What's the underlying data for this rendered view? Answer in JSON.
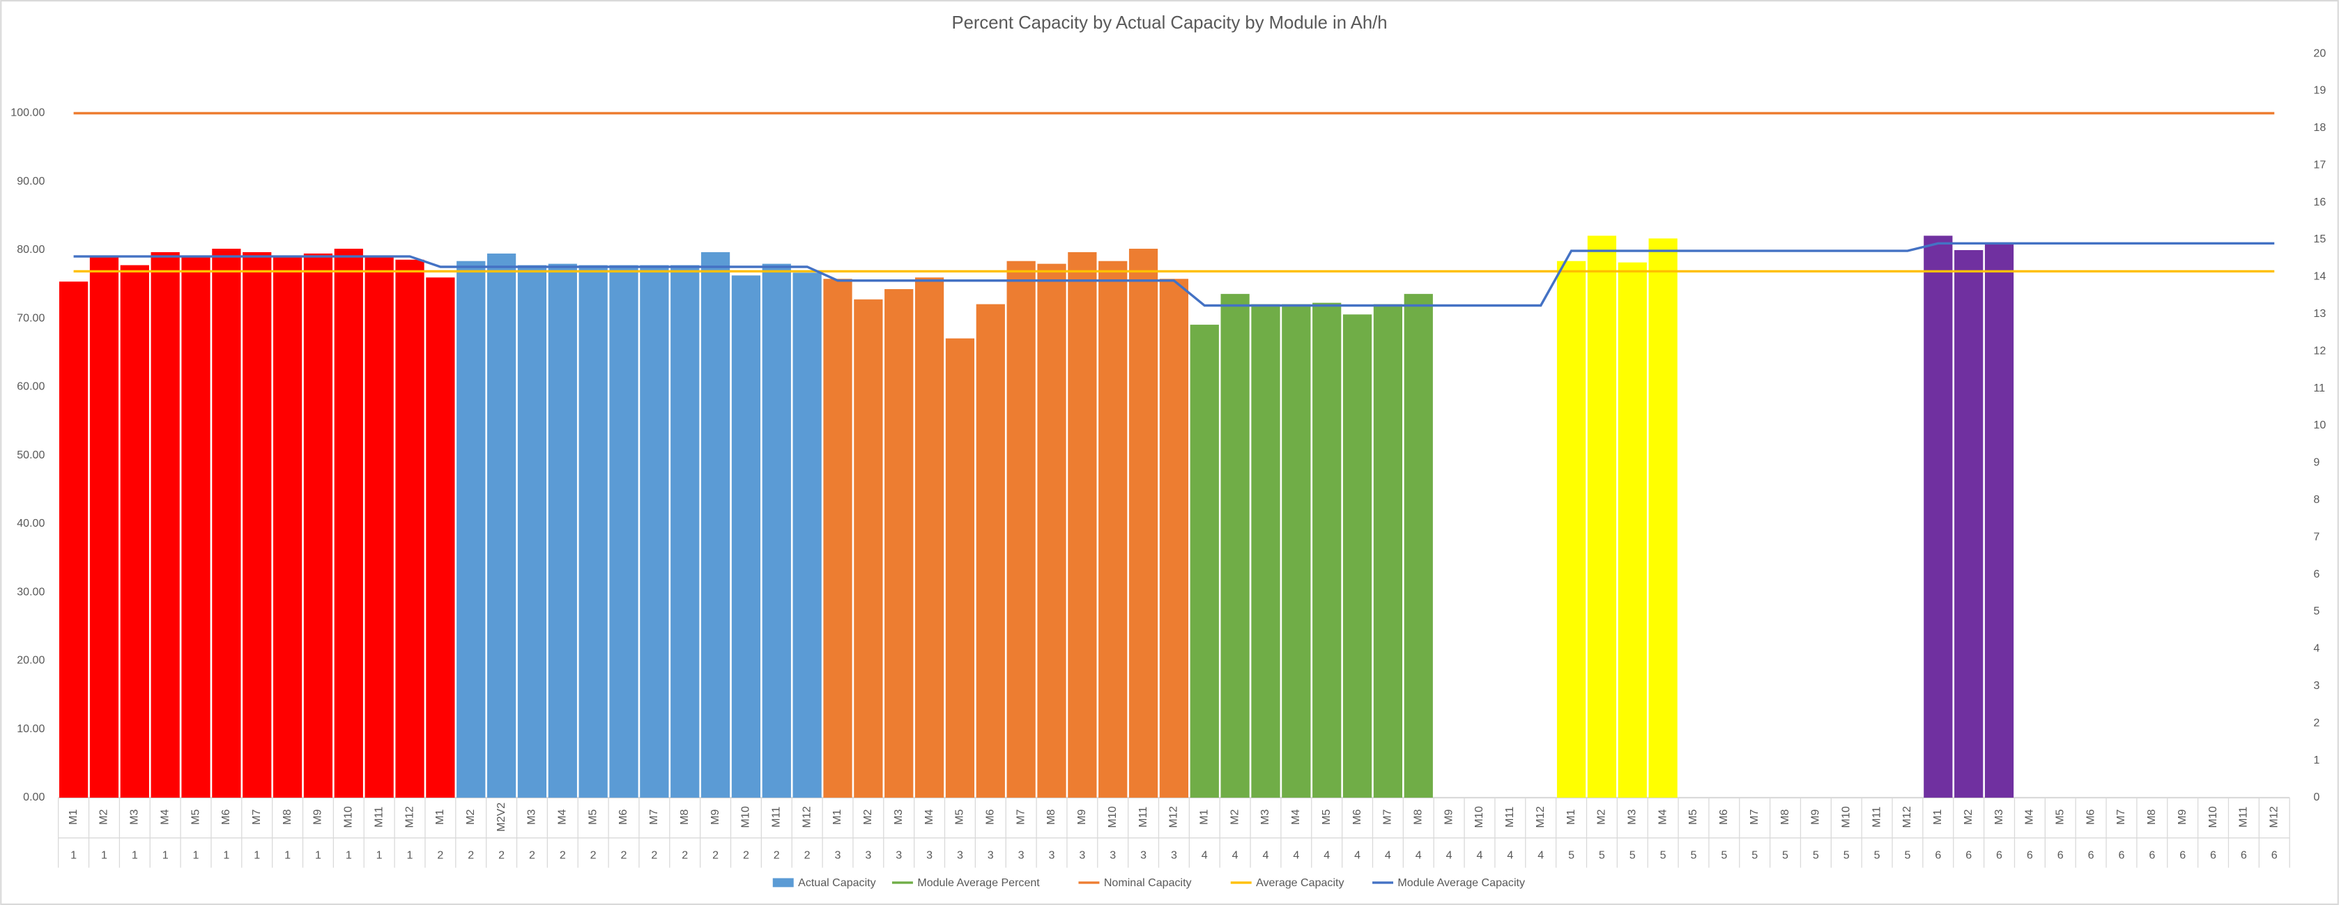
{
  "chart_data": {
    "type": "bar",
    "title": "Percent Capacity by Actual Capacity by Module in Ah/h",
    "categories": [
      "M1",
      "M2",
      "M3",
      "M4",
      "M5",
      "M6",
      "M7",
      "M8",
      "M9",
      "M10",
      "M11",
      "M12",
      "M1",
      "M2",
      "M2V2",
      "M3",
      "M4",
      "M5",
      "M6",
      "M7",
      "M8",
      "M9",
      "M10",
      "M11",
      "M12",
      "M1",
      "M2",
      "M3",
      "M4",
      "M5",
      "M6",
      "M7",
      "M8",
      "M9",
      "M10",
      "M11",
      "M12",
      "M1",
      "M2",
      "M3",
      "M4",
      "M5",
      "M6",
      "M7",
      "M8",
      "M9",
      "M10",
      "M11",
      "M12",
      "M1",
      "M2",
      "M3",
      "M4",
      "M5",
      "M6",
      "M7",
      "M8",
      "M9",
      "M10",
      "M11",
      "M12",
      "M1",
      "M2",
      "M3",
      "M4",
      "M5",
      "M6",
      "M7",
      "M8",
      "M9",
      "M10",
      "M11",
      "M12"
    ],
    "category_groups": [
      "1",
      "1",
      "1",
      "1",
      "1",
      "1",
      "1",
      "1",
      "1",
      "1",
      "1",
      "1",
      "2",
      "2",
      "2",
      "2",
      "2",
      "2",
      "2",
      "2",
      "2",
      "2",
      "2",
      "2",
      "2",
      "3",
      "3",
      "3",
      "3",
      "3",
      "3",
      "3",
      "3",
      "3",
      "3",
      "3",
      "3",
      "4",
      "4",
      "4",
      "4",
      "4",
      "4",
      "4",
      "4",
      "4",
      "4",
      "4",
      "4",
      "5",
      "5",
      "5",
      "5",
      "5",
      "5",
      "5",
      "5",
      "5",
      "5",
      "5",
      "5",
      "6",
      "6",
      "6",
      "6",
      "6",
      "6",
      "6",
      "6",
      "6",
      "6",
      "6",
      "6"
    ],
    "ylim": [
      0,
      108.7
    ],
    "yticks": [
      {
        "value": 0,
        "label": "0.00"
      },
      {
        "value": 10,
        "label": "10.00"
      },
      {
        "value": 20,
        "label": "20.00"
      },
      {
        "value": 30,
        "label": "30.00"
      },
      {
        "value": 40,
        "label": "40.00"
      },
      {
        "value": 50,
        "label": "50.00"
      },
      {
        "value": 60,
        "label": "60.00"
      },
      {
        "value": 70,
        "label": "70.00"
      },
      {
        "value": 80,
        "label": "80.00"
      },
      {
        "value": 90,
        "label": "90.00"
      },
      {
        "value": 100,
        "label": "100.00"
      }
    ],
    "y2lim": [
      0,
      20
    ],
    "y2ticks": [
      0,
      1,
      2,
      3,
      4,
      5,
      6,
      7,
      8,
      9,
      10,
      11,
      12,
      13,
      14,
      15,
      16,
      17,
      18,
      19,
      20
    ],
    "series": [
      {
        "name": "Actual Capacity",
        "type": "bar",
        "color": "#5b9bd5",
        "values": [
          75.4,
          79.1,
          77.8,
          79.7,
          79.1,
          80.2,
          79.7,
          79.1,
          79.5,
          80.2,
          79.1,
          78.6,
          76.0,
          78.4,
          79.5,
          77.8,
          78.0,
          77.8,
          77.8,
          77.8,
          77.8,
          79.7,
          76.3,
          78.0,
          76.7,
          75.8,
          72.8,
          74.3,
          76.0,
          67.1,
          72.1,
          78.4,
          78.0,
          79.7,
          78.4,
          80.2,
          75.8,
          69.1,
          73.6,
          72.1,
          72.1,
          72.3,
          70.6,
          72.1,
          73.6,
          null,
          null,
          null,
          null,
          78.4,
          82.1,
          78.2,
          81.7,
          null,
          null,
          null,
          null,
          null,
          null,
          null,
          null,
          82.1,
          80.0,
          81.0,
          null,
          null,
          null,
          null,
          null,
          null,
          null,
          null,
          null
        ],
        "colors": [
          "#ff0000",
          "#ff0000",
          "#ff0000",
          "#ff0000",
          "#ff0000",
          "#ff0000",
          "#ff0000",
          "#ff0000",
          "#ff0000",
          "#ff0000",
          "#ff0000",
          "#ff0000",
          "#ff0000",
          "#5b9bd5",
          "#5b9bd5",
          "#5b9bd5",
          "#5b9bd5",
          "#5b9bd5",
          "#5b9bd5",
          "#5b9bd5",
          "#5b9bd5",
          "#5b9bd5",
          "#5b9bd5",
          "#5b9bd5",
          "#5b9bd5",
          "#ed7d31",
          "#ed7d31",
          "#ed7d31",
          "#ed7d31",
          "#ed7d31",
          "#ed7d31",
          "#ed7d31",
          "#ed7d31",
          "#ed7d31",
          "#ed7d31",
          "#ed7d31",
          "#ed7d31",
          "#70ad47",
          "#70ad47",
          "#70ad47",
          "#70ad47",
          "#70ad47",
          "#70ad47",
          "#70ad47",
          "#70ad47",
          null,
          null,
          null,
          null,
          "#ffff00",
          "#ffff00",
          "#ffff00",
          "#ffff00",
          null,
          null,
          null,
          null,
          null,
          null,
          null,
          null,
          "#7030a0",
          "#7030a0",
          "#7030a0",
          null,
          null,
          null,
          null,
          null,
          null,
          null,
          null,
          null
        ]
      },
      {
        "name": "Module Average Percent",
        "type": "line",
        "color": "#70ad47",
        "values": [
          null,
          null,
          null,
          null,
          null,
          null,
          null,
          null,
          null,
          null,
          null,
          null,
          null,
          null,
          null,
          null,
          null,
          null,
          null,
          null,
          null,
          null,
          null,
          null,
          null,
          null,
          null,
          null,
          null,
          null,
          null,
          null,
          null,
          null,
          null,
          null,
          null,
          null,
          null,
          null,
          null,
          null,
          null,
          null,
          null,
          null,
          null,
          null,
          null,
          null,
          null,
          null,
          null,
          null,
          null,
          null,
          null,
          null,
          null,
          null,
          null,
          null,
          null,
          null,
          null,
          null,
          null,
          null,
          null,
          null,
          null,
          null,
          null
        ]
      },
      {
        "name": "Nominal Capacity",
        "type": "line",
        "color": "#ed7d31",
        "values": [
          100,
          100,
          100,
          100,
          100,
          100,
          100,
          100,
          100,
          100,
          100,
          100,
          100,
          100,
          100,
          100,
          100,
          100,
          100,
          100,
          100,
          100,
          100,
          100,
          100,
          100,
          100,
          100,
          100,
          100,
          100,
          100,
          100,
          100,
          100,
          100,
          100,
          100,
          100,
          100,
          100,
          100,
          100,
          100,
          100,
          100,
          100,
          100,
          100,
          100,
          100,
          100,
          100,
          100,
          100,
          100,
          100,
          100,
          100,
          100,
          100,
          100,
          100,
          100,
          100,
          100,
          100,
          100,
          100,
          100,
          100,
          100,
          100
        ]
      },
      {
        "name": "Average Capacity",
        "type": "line",
        "color": "#ffc000",
        "values": [
          76.9,
          76.9,
          76.9,
          76.9,
          76.9,
          76.9,
          76.9,
          76.9,
          76.9,
          76.9,
          76.9,
          76.9,
          76.9,
          76.9,
          76.9,
          76.9,
          76.9,
          76.9,
          76.9,
          76.9,
          76.9,
          76.9,
          76.9,
          76.9,
          76.9,
          76.9,
          76.9,
          76.9,
          76.9,
          76.9,
          76.9,
          76.9,
          76.9,
          76.9,
          76.9,
          76.9,
          76.9,
          76.9,
          76.9,
          76.9,
          76.9,
          76.9,
          76.9,
          76.9,
          76.9,
          76.9,
          76.9,
          76.9,
          76.9,
          76.9,
          76.9,
          76.9,
          76.9,
          76.9,
          76.9,
          76.9,
          76.9,
          76.9,
          76.9,
          76.9,
          76.9,
          76.9,
          76.9,
          76.9,
          76.9,
          76.9,
          76.9,
          76.9,
          76.9,
          76.9,
          76.9,
          76.9,
          76.9
        ]
      },
      {
        "name": "Module Average Capacity",
        "type": "line",
        "color": "#4472c4",
        "axis": "y2",
        "values": [
          14.55,
          14.55,
          14.55,
          14.55,
          14.55,
          14.55,
          14.55,
          14.55,
          14.55,
          14.55,
          14.55,
          14.55,
          14.27,
          14.27,
          14.27,
          14.27,
          14.27,
          14.27,
          14.27,
          14.27,
          14.27,
          14.27,
          14.27,
          14.27,
          14.27,
          13.9,
          13.9,
          13.9,
          13.9,
          13.9,
          13.9,
          13.9,
          13.9,
          13.9,
          13.9,
          13.9,
          13.9,
          13.23,
          13.23,
          13.23,
          13.23,
          13.23,
          13.23,
          13.23,
          13.23,
          13.23,
          13.23,
          13.23,
          13.23,
          14.7,
          14.7,
          14.7,
          14.7,
          14.7,
          14.7,
          14.7,
          14.7,
          14.7,
          14.7,
          14.7,
          14.7,
          14.9,
          14.9,
          14.9,
          14.9,
          14.9,
          14.9,
          14.9,
          14.9,
          14.9,
          14.9,
          14.9,
          14.9
        ]
      }
    ]
  }
}
